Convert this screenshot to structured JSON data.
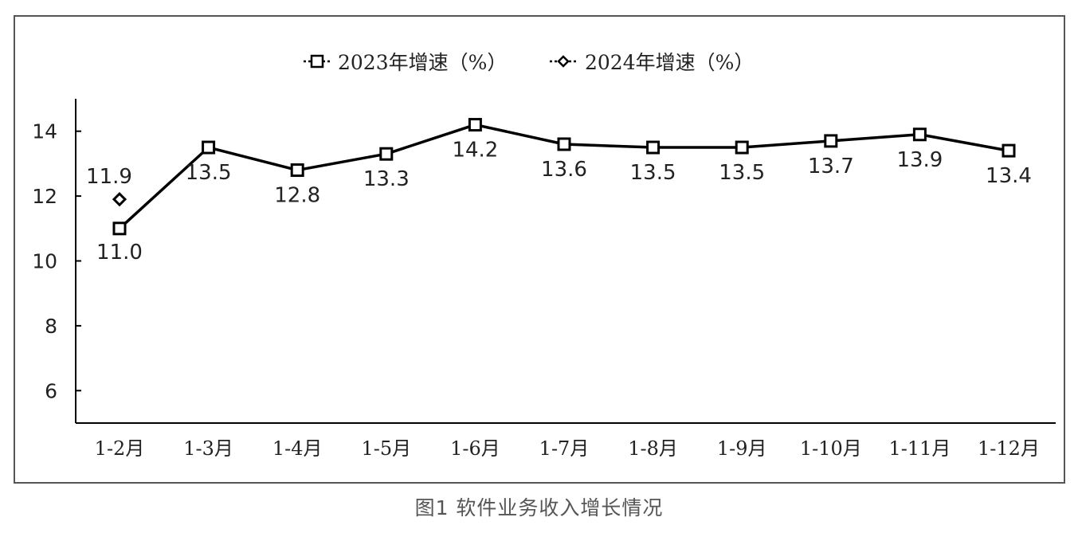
{
  "caption": "图1  软件业务收入增长情况",
  "chart_data": {
    "type": "line",
    "categories": [
      "1-2月",
      "1-3月",
      "1-4月",
      "1-5月",
      "1-6月",
      "1-7月",
      "1-8月",
      "1-9月",
      "1-10月",
      "1-11月",
      "1-12月"
    ],
    "series": [
      {
        "name": "2023年增速（%）",
        "values": [
          11.0,
          13.5,
          12.8,
          13.3,
          14.2,
          13.6,
          13.5,
          13.5,
          13.7,
          13.9,
          13.4
        ],
        "marker": "square",
        "labels": [
          "11.0",
          "13.5",
          "12.8",
          "13.3",
          "14.2",
          "13.6",
          "13.5",
          "13.5",
          "13.7",
          "13.9",
          "13.4"
        ]
      },
      {
        "name": "2024年增速（%）",
        "values": [
          11.9,
          null,
          null,
          null,
          null,
          null,
          null,
          null,
          null,
          null,
          null
        ],
        "marker": "diamond",
        "labels": [
          "11.9"
        ]
      }
    ],
    "yticks": [
      6,
      8,
      10,
      12,
      14
    ],
    "ylim": [
      5,
      15
    ],
    "legend_position": "top-center",
    "grid": false,
    "line_color": "#000000"
  }
}
